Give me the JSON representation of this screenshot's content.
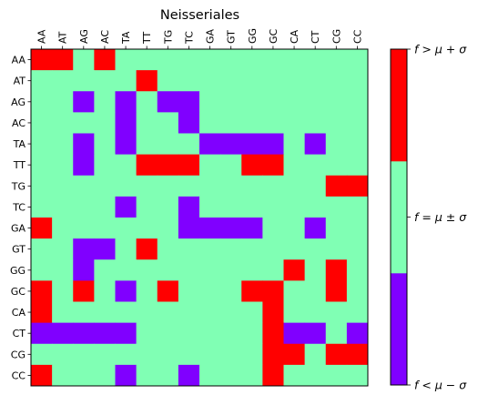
{
  "chart_data": {
    "type": "heatmap",
    "title": "Neisseriales",
    "x_labels": [
      "AA",
      "AT",
      "AG",
      "AC",
      "TA",
      "TT",
      "TG",
      "TC",
      "GA",
      "GT",
      "GG",
      "GC",
      "CA",
      "CT",
      "CG",
      "CC"
    ],
    "y_labels": [
      "AA",
      "AT",
      "AG",
      "AC",
      "TA",
      "TT",
      "TG",
      "TC",
      "GA",
      "GT",
      "GG",
      "GC",
      "CA",
      "CT",
      "CG",
      "CC"
    ],
    "x_axis_position": "top",
    "grid": false,
    "colors": {
      "-1": "#8000ff",
      "0": "#80ffb4",
      "1": "#ff0000"
    },
    "colorbar": {
      "ticks": [
        {
          "value": -1,
          "label": "f < μ − σ"
        },
        {
          "value": 0,
          "label": "f = μ ± σ"
        },
        {
          "value": 1,
          "label": "f > μ + σ"
        }
      ]
    },
    "matrix": [
      [
        1,
        1,
        0,
        1,
        0,
        0,
        0,
        0,
        0,
        0,
        0,
        0,
        0,
        0,
        0,
        0
      ],
      [
        0,
        0,
        0,
        0,
        0,
        1,
        0,
        0,
        0,
        0,
        0,
        0,
        0,
        0,
        0,
        0
      ],
      [
        0,
        0,
        -1,
        0,
        -1,
        0,
        -1,
        -1,
        0,
        0,
        0,
        0,
        0,
        0,
        0,
        0
      ],
      [
        0,
        0,
        0,
        0,
        -1,
        0,
        0,
        -1,
        0,
        0,
        0,
        0,
        0,
        0,
        0,
        0
      ],
      [
        0,
        0,
        -1,
        0,
        -1,
        0,
        0,
        0,
        -1,
        -1,
        -1,
        -1,
        0,
        -1,
        0,
        0
      ],
      [
        0,
        0,
        -1,
        0,
        0,
        1,
        1,
        1,
        0,
        0,
        1,
        1,
        0,
        0,
        0,
        0
      ],
      [
        0,
        0,
        0,
        0,
        0,
        0,
        0,
        0,
        0,
        0,
        0,
        0,
        0,
        0,
        1,
        1
      ],
      [
        0,
        0,
        0,
        0,
        -1,
        0,
        0,
        -1,
        0,
        0,
        0,
        0,
        0,
        0,
        0,
        0
      ],
      [
        1,
        0,
        0,
        0,
        0,
        0,
        0,
        -1,
        -1,
        -1,
        -1,
        0,
        0,
        -1,
        0,
        0
      ],
      [
        0,
        0,
        -1,
        -1,
        0,
        1,
        0,
        0,
        0,
        0,
        0,
        0,
        0,
        0,
        0,
        0
      ],
      [
        0,
        0,
        -1,
        0,
        0,
        0,
        0,
        0,
        0,
        0,
        0,
        0,
        1,
        0,
        1,
        0
      ],
      [
        1,
        0,
        1,
        0,
        -1,
        0,
        1,
        0,
        0,
        0,
        1,
        1,
        0,
        0,
        1,
        0
      ],
      [
        1,
        0,
        0,
        0,
        0,
        0,
        0,
        0,
        0,
        0,
        0,
        1,
        0,
        0,
        0,
        0
      ],
      [
        -1,
        -1,
        -1,
        -1,
        -1,
        0,
        0,
        0,
        0,
        0,
        0,
        1,
        -1,
        -1,
        0,
        -1
      ],
      [
        0,
        0,
        0,
        0,
        0,
        0,
        0,
        0,
        0,
        0,
        0,
        1,
        1,
        0,
        1,
        1
      ],
      [
        1,
        0,
        0,
        0,
        -1,
        0,
        0,
        -1,
        0,
        0,
        0,
        1,
        0,
        0,
        0,
        0
      ]
    ]
  }
}
